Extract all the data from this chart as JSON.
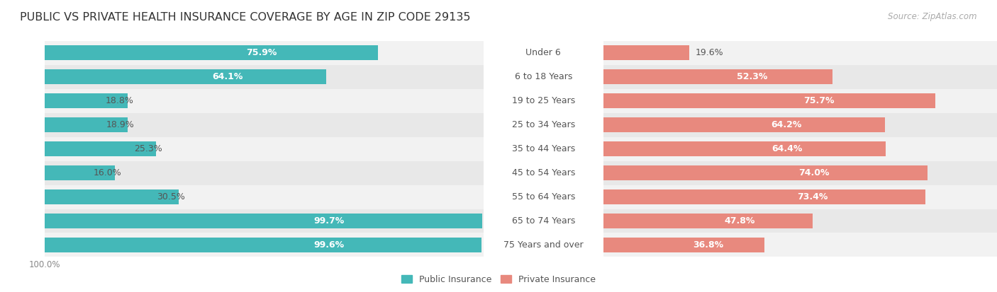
{
  "title": "PUBLIC VS PRIVATE HEALTH INSURANCE COVERAGE BY AGE IN ZIP CODE 29135",
  "source": "Source: ZipAtlas.com",
  "categories": [
    "Under 6",
    "6 to 18 Years",
    "19 to 25 Years",
    "25 to 34 Years",
    "35 to 44 Years",
    "45 to 54 Years",
    "55 to 64 Years",
    "65 to 74 Years",
    "75 Years and over"
  ],
  "public_values": [
    75.9,
    64.1,
    18.8,
    18.9,
    25.3,
    16.0,
    30.5,
    99.7,
    99.6
  ],
  "private_values": [
    19.6,
    52.3,
    75.7,
    64.2,
    64.4,
    74.0,
    73.4,
    47.8,
    36.8
  ],
  "public_color": "#44b8b8",
  "private_color": "#e8897e",
  "row_bg_light": "#f2f2f2",
  "row_bg_dark": "#e8e8e8",
  "title_fontsize": 11.5,
  "cat_fontsize": 9,
  "val_fontsize": 9,
  "tick_fontsize": 8.5,
  "source_fontsize": 8.5,
  "bar_height": 0.62,
  "max_value": 100.0,
  "figsize": [
    14.06,
    4.13
  ],
  "dpi": 100
}
